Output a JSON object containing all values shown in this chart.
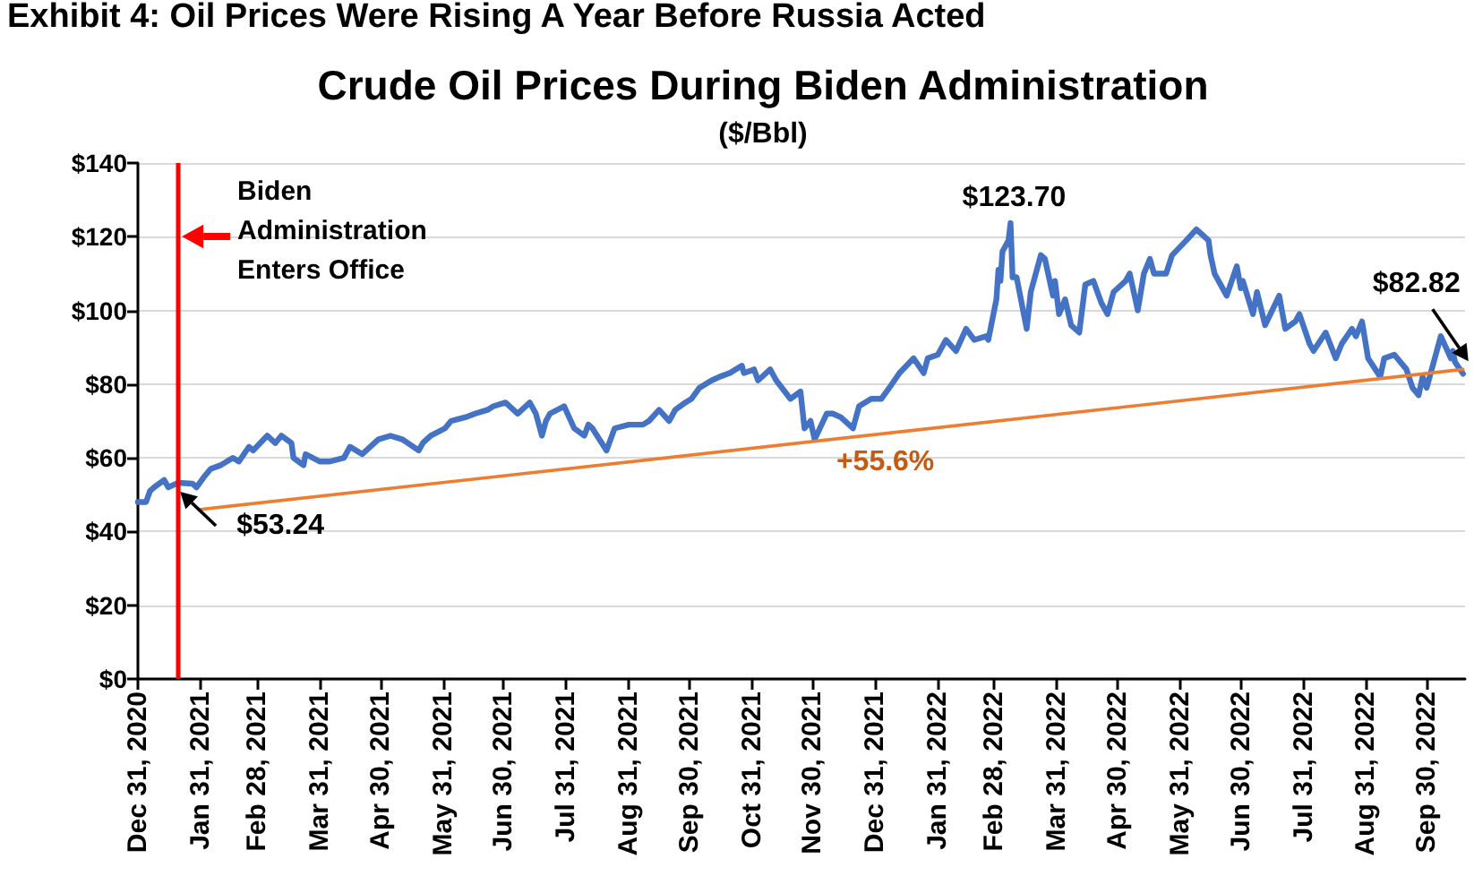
{
  "chart_data": {
    "type": "line",
    "title": "Crude Oil Prices During Biden Administration",
    "subtitle": "($/Bbl)",
    "annotations": [
      "Exhibit 4: Oil Prices Were Rising A Year Before Russia Acted",
      {
        "text": "$53.24",
        "x": "2021-01-20",
        "y": 53.24
      },
      {
        "text": "$123.70",
        "x": "2022-03-08",
        "y": 123.7
      },
      {
        "text": "$82.82",
        "x": "2022-10-18",
        "y": 82.82
      },
      {
        "text": "+55.6%",
        "x": "2022-01-05",
        "y": 67
      }
    ],
    "x": [
      "2020-12-31",
      "2021-01-04",
      "2021-01-06",
      "2021-01-08",
      "2021-01-13",
      "2021-01-15",
      "2021-01-20",
      "2021-01-27",
      "2021-01-29",
      "2021-02-02",
      "2021-02-05",
      "2021-02-10",
      "2021-02-16",
      "2021-02-19",
      "2021-02-24",
      "2021-02-26",
      "2021-03-05",
      "2021-03-09",
      "2021-03-12",
      "2021-03-17",
      "2021-03-18",
      "2021-03-23",
      "2021-03-24",
      "2021-03-31",
      "2021-04-05",
      "2021-04-12",
      "2021-04-15",
      "2021-04-21",
      "2021-04-29",
      "2021-05-05",
      "2021-05-11",
      "2021-05-19",
      "2021-05-21",
      "2021-05-25",
      "2021-06-01",
      "2021-06-04",
      "2021-06-11",
      "2021-06-16",
      "2021-06-22",
      "2021-06-25",
      "2021-07-01",
      "2021-07-07",
      "2021-07-13",
      "2021-07-16",
      "2021-07-19",
      "2021-07-21",
      "2021-07-23",
      "2021-07-30",
      "2021-08-04",
      "2021-08-09",
      "2021-08-11",
      "2021-08-13",
      "2021-08-20",
      "2021-08-24",
      "2021-08-31",
      "2021-09-07",
      "2021-09-10",
      "2021-09-15",
      "2021-09-20",
      "2021-09-23",
      "2021-09-28",
      "2021-10-01",
      "2021-10-05",
      "2021-10-11",
      "2021-10-15",
      "2021-10-20",
      "2021-10-26",
      "2021-10-27",
      "2021-11-01",
      "2021-11-03",
      "2021-11-09",
      "2021-11-12",
      "2021-11-19",
      "2021-11-24",
      "2021-11-26",
      "2021-11-29",
      "2021-12-01",
      "2021-12-07",
      "2021-12-10",
      "2021-12-14",
      "2021-12-20",
      "2021-12-23",
      "2021-12-29",
      "2022-01-03",
      "2022-01-07",
      "2022-01-12",
      "2022-01-19",
      "2022-01-24",
      "2022-01-26",
      "2022-01-31",
      "2022-02-04",
      "2022-02-09",
      "2022-02-14",
      "2022-02-18",
      "2022-02-24",
      "2022-02-25",
      "2022-03-01",
      "2022-03-02",
      "2022-03-03",
      "2022-03-04",
      "2022-03-07",
      "2022-03-08",
      "2022-03-09",
      "2022-03-11",
      "2022-03-16",
      "2022-03-18",
      "2022-03-23",
      "2022-03-25",
      "2022-03-29",
      "2022-03-30",
      "2022-04-01",
      "2022-04-04",
      "2022-04-07",
      "2022-04-11",
      "2022-04-14",
      "2022-04-18",
      "2022-04-22",
      "2022-04-25",
      "2022-04-28",
      "2022-05-04",
      "2022-05-06",
      "2022-05-10",
      "2022-05-13",
      "2022-05-16",
      "2022-05-18",
      "2022-05-24",
      "2022-05-27",
      "2022-06-03",
      "2022-06-08",
      "2022-06-10",
      "2022-06-14",
      "2022-06-15",
      "2022-06-17",
      "2022-06-23",
      "2022-06-28",
      "2022-06-30",
      "2022-07-01",
      "2022-07-06",
      "2022-07-08",
      "2022-07-12",
      "2022-07-19",
      "2022-07-22",
      "2022-07-27",
      "2022-07-29",
      "2022-08-03",
      "2022-08-05",
      "2022-08-11",
      "2022-08-16",
      "2022-08-19",
      "2022-08-24",
      "2022-08-26",
      "2022-08-29",
      "2022-09-01",
      "2022-09-07",
      "2022-09-09",
      "2022-09-14",
      "2022-09-20",
      "2022-09-23",
      "2022-09-26",
      "2022-09-28",
      "2022-09-30",
      "2022-10-04",
      "2022-10-07",
      "2022-10-12",
      "2022-10-13",
      "2022-10-14",
      "2022-10-18"
    ],
    "series": [
      {
        "color": "#4472c4",
        "values": [
          48,
          48,
          51,
          52,
          54,
          52,
          53.24,
          53,
          52,
          55,
          57,
          58,
          60,
          59,
          63,
          62,
          66,
          64,
          66,
          64,
          60,
          58,
          61,
          59,
          59,
          60,
          63,
          61,
          65,
          66,
          65,
          62,
          64,
          66,
          68,
          70,
          71,
          72,
          73,
          74,
          75,
          72,
          75,
          72,
          66,
          70,
          72,
          74,
          68,
          66,
          69,
          68,
          62,
          68,
          69,
          69,
          70,
          73,
          70,
          73,
          75,
          76,
          79,
          81,
          82,
          83,
          85,
          83,
          84,
          81,
          84,
          81,
          76,
          78,
          68,
          70,
          65,
          72,
          72,
          71,
          68,
          74,
          76,
          76,
          79,
          83,
          87,
          83,
          87,
          88,
          92,
          89,
          95,
          92,
          93,
          92,
          103,
          111,
          108,
          116,
          119,
          123.7,
          109,
          109,
          95,
          105,
          115,
          114,
          104,
          108,
          99,
          103,
          96,
          94,
          107,
          108,
          102,
          99,
          105,
          108,
          110,
          100,
          110,
          114,
          110,
          110,
          115,
          119,
          122,
          121,
          119,
          115,
          110,
          104,
          112,
          106,
          108,
          99,
          105,
          96,
          104,
          95,
          97,
          99,
          91,
          89,
          94,
          87,
          91,
          95,
          93,
          97,
          87,
          82,
          87,
          88,
          84,
          79,
          77,
          82,
          79,
          87,
          93,
          87,
          89,
          86,
          82.82
        ]
      },
      {
        "type": "line",
        "color": "#ed7d31",
        "x": [
          "2021-01-31",
          "2022-10-18"
        ],
        "values": [
          46,
          84
        ]
      }
    ],
    "xlim": [
      "2020-12-31",
      "2022-10-19"
    ],
    "xticks": [
      {
        "value": "2020-12-31",
        "label": "Dec 31, 2020"
      },
      {
        "value": "2021-01-31",
        "label": "Jan 31, 2021"
      },
      {
        "value": "2021-02-28",
        "label": "Feb 28, 2021"
      },
      {
        "value": "2021-03-31",
        "label": "Mar 31, 2021"
      },
      {
        "value": "2021-04-30",
        "label": "Apr 30, 2021"
      },
      {
        "value": "2021-05-31",
        "label": "May 31, 2021"
      },
      {
        "value": "2021-06-30",
        "label": "Jun 30, 2021"
      },
      {
        "value": "2021-07-31",
        "label": "Jul 31, 2021"
      },
      {
        "value": "2021-08-31",
        "label": "Aug 31, 2021"
      },
      {
        "value": "2021-09-30",
        "label": "Sep 30, 2021"
      },
      {
        "value": "2021-10-31",
        "label": "Oct 31, 2021"
      },
      {
        "value": "2021-11-30",
        "label": "Nov 30, 2021"
      },
      {
        "value": "2021-12-31",
        "label": "Dec 31, 2021"
      },
      {
        "value": "2022-01-31",
        "label": "Jan 31, 2022"
      },
      {
        "value": "2022-02-28",
        "label": "Feb 28, 2022"
      },
      {
        "value": "2022-03-31",
        "label": "Mar 31, 2022"
      },
      {
        "value": "2022-04-30",
        "label": "Apr 30, 2022"
      },
      {
        "value": "2022-05-31",
        "label": "May 31, 2022"
      },
      {
        "value": "2022-06-30",
        "label": "Jun 30, 2022"
      },
      {
        "value": "2022-07-31",
        "label": "Jul 31, 2022"
      },
      {
        "value": "2022-08-31",
        "label": "Aug 31, 2022"
      },
      {
        "value": "2022-09-30",
        "label": "Sep 30, 2022"
      }
    ],
    "ylim": [
      0,
      140
    ],
    "yticks": [
      {
        "value": 0,
        "label": "$0"
      },
      {
        "value": 20,
        "label": "$20"
      },
      {
        "value": 40,
        "label": "$40"
      },
      {
        "value": 60,
        "label": "$60"
      },
      {
        "value": 80,
        "label": "$80"
      },
      {
        "value": 100,
        "label": "$100"
      },
      {
        "value": 120,
        "label": "$120"
      },
      {
        "value": 140,
        "label": "$140"
      }
    ],
    "ref_lines": [
      {
        "axis": "x",
        "value": "2021-01-20",
        "label": "Biden Administration Enters Office",
        "color": "#ff0000"
      }
    ],
    "grid": "y",
    "marker": "none",
    "line_style": "solid"
  }
}
